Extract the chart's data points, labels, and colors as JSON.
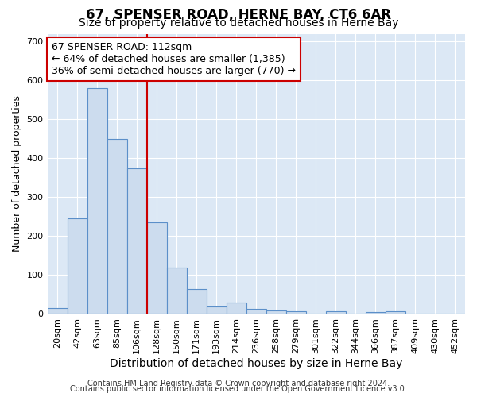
{
  "title": "67, SPENSER ROAD, HERNE BAY, CT6 6AR",
  "subtitle": "Size of property relative to detached houses in Herne Bay",
  "xlabel": "Distribution of detached houses by size in Herne Bay",
  "ylabel": "Number of detached properties",
  "categories": [
    "20sqm",
    "42sqm",
    "63sqm",
    "85sqm",
    "106sqm",
    "128sqm",
    "150sqm",
    "171sqm",
    "193sqm",
    "214sqm",
    "236sqm",
    "258sqm",
    "279sqm",
    "301sqm",
    "322sqm",
    "344sqm",
    "366sqm",
    "387sqm",
    "409sqm",
    "430sqm",
    "452sqm"
  ],
  "values": [
    15,
    245,
    580,
    450,
    375,
    235,
    120,
    65,
    20,
    30,
    13,
    10,
    8,
    0,
    8,
    0,
    5,
    7,
    0,
    0,
    0
  ],
  "bar_color": "#ccdcee",
  "bar_edge_color": "#5b8fc9",
  "vline_x_index": 4,
  "vline_color": "#cc0000",
  "annotation_line1": "67 SPENSER ROAD: 112sqm",
  "annotation_line2": "← 64% of detached houses are smaller (1,385)",
  "annotation_line3": "36% of semi-detached houses are larger (770) →",
  "annotation_box_color": "#ffffff",
  "annotation_box_edge_color": "#cc0000",
  "ylim": [
    0,
    720
  ],
  "yticks": [
    0,
    100,
    200,
    300,
    400,
    500,
    600,
    700
  ],
  "footer1": "Contains HM Land Registry data © Crown copyright and database right 2024.",
  "footer2": "Contains public sector information licensed under the Open Government Licence v3.0.",
  "bg_color": "#ffffff",
  "plot_bg_color": "#dce8f5",
  "title_fontsize": 12,
  "subtitle_fontsize": 10,
  "tick_fontsize": 8,
  "ylabel_fontsize": 9,
  "xlabel_fontsize": 10,
  "footer_fontsize": 7,
  "annotation_fontsize": 9
}
